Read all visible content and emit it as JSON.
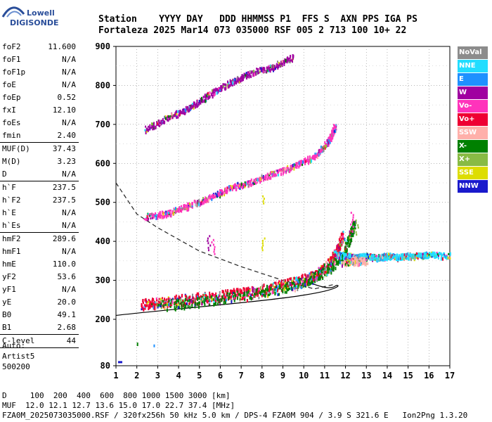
{
  "logo": {
    "line1": "Lowell",
    "line2": "DIGISONDE"
  },
  "header": {
    "row1": "Station    YYYY DAY   DDD HHMMSS P1  FFS S  AXN PPS IGA PS",
    "row2": "Fortaleza 2025 Mar14 073 035000 RSF 005 2 713 100 10+ 22"
  },
  "params": [
    {
      "k": "foF2",
      "v": "11.600"
    },
    {
      "k": "foF1",
      "v": "N/A"
    },
    {
      "k": "foF1p",
      "v": "N/A"
    },
    {
      "k": "foE",
      "v": "N/A"
    },
    {
      "k": "foEp",
      "v": "0.52"
    },
    {
      "k": "fxI",
      "v": "12.10"
    },
    {
      "k": "foEs",
      "v": "N/A"
    },
    {
      "k": "fmin",
      "v": "2.40"
    },
    {
      "sep": true
    },
    {
      "k": "MUF(D)",
      "v": "37.43"
    },
    {
      "k": "M(D)",
      "v": "3.23"
    },
    {
      "k": "D",
      "v": "N/A"
    },
    {
      "sep": true
    },
    {
      "k": "h`F",
      "v": "237.5"
    },
    {
      "k": "h`F2",
      "v": "237.5"
    },
    {
      "k": "h`E",
      "v": "N/A"
    },
    {
      "k": "h`Es",
      "v": "N/A"
    },
    {
      "sep": true
    },
    {
      "k": "hmF2",
      "v": "289.6"
    },
    {
      "k": "hmF1",
      "v": "N/A"
    },
    {
      "k": "hmE",
      "v": "110.0"
    },
    {
      "k": "yF2",
      "v": "53.6"
    },
    {
      "k": "yF1",
      "v": "N/A"
    },
    {
      "k": "yE",
      "v": "20.0"
    },
    {
      "k": "B0",
      "v": "49.1"
    },
    {
      "k": "B1",
      "v": "2.68"
    },
    {
      "sep": true
    },
    {
      "k": "C-level",
      "v": "44"
    },
    {
      "sep": true
    }
  ],
  "auto": {
    "line1": "Auto:",
    "line2": "Artist5",
    "line3": "500200"
  },
  "legend": [
    {
      "label": "NoVal",
      "color": "#8c8c8c"
    },
    {
      "label": "NNE",
      "color": "#22ddff"
    },
    {
      "label": "E",
      "color": "#1e90ff"
    },
    {
      "label": "W",
      "color": "#a000a0"
    },
    {
      "label": "Vo-",
      "color": "#ff33bb"
    },
    {
      "label": "Vo+",
      "color": "#ee0033"
    },
    {
      "label": "SSW",
      "color": "#ffb0aa"
    },
    {
      "label": "X-",
      "color": "#008000"
    },
    {
      "label": "X+",
      "color": "#88bb44"
    },
    {
      "label": "SSE",
      "color": "#dddd00"
    },
    {
      "label": "NNW",
      "color": "#1a1acc"
    }
  ],
  "footer": {
    "row1": "D     100  200  400  600  800 1000 1500 3000 [km]",
    "row2": "MUF  12.0 12.1 12.7 13.6 15.0 17.0 22.7 37.4 [MHz]",
    "row3": "FZA0M_2025073035000.RSF / 320fx256h 50 kHz 5.0 km / DPS-4 FZA0M 904 / 3.9 S 321.6 E   Ion2Png 1.3.20"
  },
  "chart_data": {
    "type": "scatter",
    "xlim": [
      1,
      17
    ],
    "ylim": [
      80,
      900
    ],
    "x_ticks": [
      "1",
      "2",
      "3",
      "4",
      "5",
      "6",
      "7",
      "8",
      "9",
      "10",
      "11",
      "12",
      "13",
      "14",
      "15",
      "16",
      "17"
    ],
    "y_ticks": [
      "80",
      "200",
      "300",
      "400",
      "500",
      "600",
      "700",
      "800",
      "900"
    ],
    "grid": true,
    "series": [
      {
        "name": "F2 trace O-mode (Vo+)",
        "color": "#ee0033",
        "points": [
          [
            2.2,
            240
          ],
          [
            3,
            245
          ],
          [
            4,
            252
          ],
          [
            5,
            257
          ],
          [
            6,
            262
          ],
          [
            7,
            270
          ],
          [
            8,
            278
          ],
          [
            9,
            290
          ],
          [
            10,
            305
          ],
          [
            10.8,
            325
          ],
          [
            11.3,
            350
          ],
          [
            11.6,
            380
          ],
          [
            11.9,
            420
          ]
        ]
      },
      {
        "name": "F2 trace X-mode (X-)",
        "color": "#008000",
        "points": [
          [
            3,
            238
          ],
          [
            5,
            248
          ],
          [
            7,
            262
          ],
          [
            9,
            282
          ],
          [
            10,
            298
          ],
          [
            11,
            325
          ],
          [
            11.8,
            360
          ],
          [
            12.2,
            410
          ],
          [
            12.4,
            450
          ]
        ]
      },
      {
        "name": "Second multiple (Vo-)",
        "color": "#ff33bb",
        "points": [
          [
            2.4,
            465
          ],
          [
            3.5,
            475
          ],
          [
            4.5,
            495
          ],
          [
            5.5,
            515
          ],
          [
            6.5,
            540
          ],
          [
            7.5,
            555
          ],
          [
            8.5,
            575
          ],
          [
            9.5,
            595
          ],
          [
            10.5,
            620
          ],
          [
            11.2,
            660
          ],
          [
            11.5,
            700
          ]
        ]
      },
      {
        "name": "Third multiple (W)",
        "color": "#a000a0",
        "points": [
          [
            2.4,
            690
          ],
          [
            3.5,
            720
          ],
          [
            4.5,
            745
          ],
          [
            5.5,
            780
          ],
          [
            6.5,
            810
          ],
          [
            7.5,
            835
          ],
          [
            8.5,
            850
          ],
          [
            9.5,
            875
          ]
        ]
      },
      {
        "name": "Oblique echoes (NNE)",
        "color": "#22ddff",
        "points": [
          [
            11.5,
            370
          ],
          [
            12,
            365
          ],
          [
            12.5,
            362
          ],
          [
            13,
            365
          ],
          [
            13.5,
            360
          ],
          [
            14,
            365
          ],
          [
            14.5,
            362
          ],
          [
            15,
            365
          ],
          [
            15.5,
            365
          ],
          [
            16,
            368
          ],
          [
            17,
            365
          ]
        ]
      },
      {
        "name": "Oblique echoes (SSW)",
        "color": "#ffb0aa",
        "points": [
          [
            12,
            350
          ],
          [
            12.5,
            355
          ],
          [
            13,
            352
          ],
          [
            11.8,
            345
          ]
        ]
      }
    ],
    "profile": {
      "solid": [
        [
          1,
          210
        ],
        [
          3,
          225
        ],
        [
          5,
          235
        ],
        [
          7,
          245
        ],
        [
          9,
          258
        ],
        [
          10,
          268
        ],
        [
          11,
          280
        ],
        [
          11.5,
          290
        ],
        [
          11.3,
          275
        ],
        [
          10,
          300
        ]
      ],
      "dashed": [
        [
          1,
          550
        ],
        [
          2,
          470
        ],
        [
          3,
          435
        ],
        [
          5,
          375
        ],
        [
          7,
          335
        ],
        [
          9,
          300
        ],
        [
          10.5,
          278
        ],
        [
          11.5,
          290
        ]
      ]
    }
  }
}
